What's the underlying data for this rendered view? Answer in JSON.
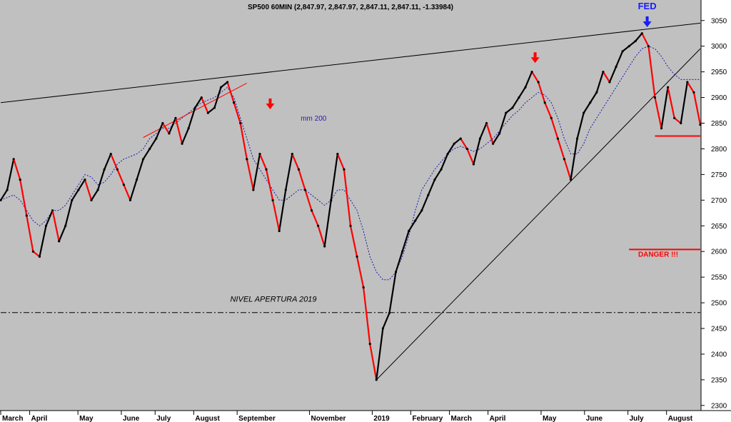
{
  "chart_data": {
    "type": "line",
    "title": "SP500 60MIN (2,847.97, 2,847.97, 2,847.11, 2,847.11, -1.33984)",
    "xlabel": "",
    "ylabel": "",
    "ylim": [
      2290,
      3090
    ],
    "y_ticks": [
      2300,
      2350,
      2400,
      2450,
      2500,
      2550,
      2600,
      2650,
      2700,
      2750,
      2800,
      2850,
      2900,
      2950,
      3000,
      3050
    ],
    "x_ticks": [
      "March",
      "April",
      "May",
      "June",
      "July",
      "August",
      "September",
      "November",
      "2019",
      "February",
      "March",
      "April",
      "May",
      "June",
      "July",
      "August"
    ],
    "grid": false,
    "legend": "none",
    "series": [
      {
        "values": [
          2700,
          2720,
          2780,
          2740,
          2670,
          2600,
          2590,
          2650,
          2680,
          2620,
          2650,
          2700,
          2720,
          2740,
          2700,
          2720,
          2760,
          2790,
          2760,
          2730,
          2700,
          2740,
          2780,
          2800,
          2820,
          2850,
          2830,
          2860,
          2810,
          2840,
          2880,
          2900,
          2870,
          2880,
          2920,
          2930,
          2890,
          2850,
          2780,
          2720,
          2790,
          2760,
          2700,
          2640,
          2720,
          2790,
          2760,
          2720,
          2680,
          2650,
          2610,
          2700,
          2790,
          2760,
          2650,
          2590,
          2530,
          2420,
          2350,
          2450,
          2480,
          2560,
          2600,
          2640,
          2660,
          2680,
          2710,
          2740,
          2760,
          2790,
          2810,
          2820,
          2800,
          2770,
          2820,
          2850,
          2810,
          2830,
          2870,
          2880,
          2900,
          2920,
          2950,
          2930,
          2890,
          2860,
          2820,
          2780,
          2740,
          2820,
          2870,
          2890,
          2910,
          2950,
          2930,
          2960,
          2990,
          3000,
          3010,
          3025,
          3000,
          2900,
          2840,
          2920,
          2860,
          2850,
          2930,
          2910,
          2847
        ],
        "color": "#000000",
        "down_color": "#ff0000"
      },
      {
        "name": "mm 200",
        "values": [
          2700,
          2705,
          2710,
          2700,
          2680,
          2660,
          2650,
          2660,
          2680,
          2680,
          2690,
          2710,
          2730,
          2750,
          2745,
          2730,
          2735,
          2750,
          2770,
          2780,
          2785,
          2790,
          2800,
          2820,
          2830,
          2840,
          2840,
          2850,
          2860,
          2870,
          2880,
          2890,
          2895,
          2900,
          2910,
          2920,
          2900,
          2860,
          2820,
          2780,
          2760,
          2740,
          2720,
          2700,
          2700,
          2710,
          2720,
          2720,
          2710,
          2700,
          2690,
          2700,
          2720,
          2720,
          2700,
          2680,
          2640,
          2590,
          2560,
          2545,
          2545,
          2560,
          2590,
          2630,
          2680,
          2720,
          2740,
          2760,
          2775,
          2790,
          2800,
          2805,
          2800,
          2795,
          2800,
          2810,
          2820,
          2835,
          2850,
          2865,
          2875,
          2890,
          2900,
          2910,
          2905,
          2890,
          2860,
          2820,
          2790,
          2790,
          2810,
          2840,
          2860,
          2880,
          2900,
          2920,
          2940,
          2960,
          2980,
          2995,
          3000,
          2995,
          2980,
          2960,
          2945,
          2935,
          2935,
          2935,
          2935
        ],
        "color": "#1a1ab0",
        "style": "dotted"
      }
    ],
    "lines": [
      {
        "kind": "trendline",
        "from": [
          0,
          2890
        ],
        "to": [
          108,
          3045
        ],
        "color": "#000000"
      },
      {
        "kind": "trendline",
        "from": [
          58,
          2350
        ],
        "to": [
          108,
          2995
        ],
        "color": "#000000"
      },
      {
        "kind": "trendline",
        "from": [
          22,
          2822
        ],
        "to": [
          38,
          2928
        ],
        "color": "#ff0000"
      },
      {
        "kind": "hline",
        "y": 2825,
        "from": 101,
        "to": 108,
        "color": "#ff0000"
      },
      {
        "kind": "hline",
        "y": 2604,
        "from": 97,
        "to": 108,
        "color": "#ff0000"
      },
      {
        "kind": "hline",
        "y": 2481,
        "from": 0,
        "to": 108,
        "color": "#000000",
        "style": "dashdot"
      }
    ],
    "markers": [
      {
        "kind": "arrow-down",
        "x": 41.6,
        "y": 2880,
        "color": "#ff0000"
      },
      {
        "kind": "arrow-down",
        "x": 82.5,
        "y": 2970,
        "color": "#ff0000"
      },
      {
        "kind": "arrow-down",
        "x": 99.8,
        "y": 3040,
        "color": "#1a1aff"
      }
    ],
    "annotations": [
      {
        "text": "FED",
        "x": 99.8,
        "y": 3093,
        "color": "#1a1aff"
      },
      {
        "text": "DANGER !!!",
        "x": 101.5,
        "y": 2590,
        "color": "#ff0000"
      },
      {
        "text": "mm 200",
        "x": 48.3,
        "y": 2855,
        "color": "#2a1ab0"
      },
      {
        "text": "NIVEL APERTURA 2019",
        "x": 42.1,
        "y": 2502,
        "color": "#000000"
      }
    ]
  }
}
